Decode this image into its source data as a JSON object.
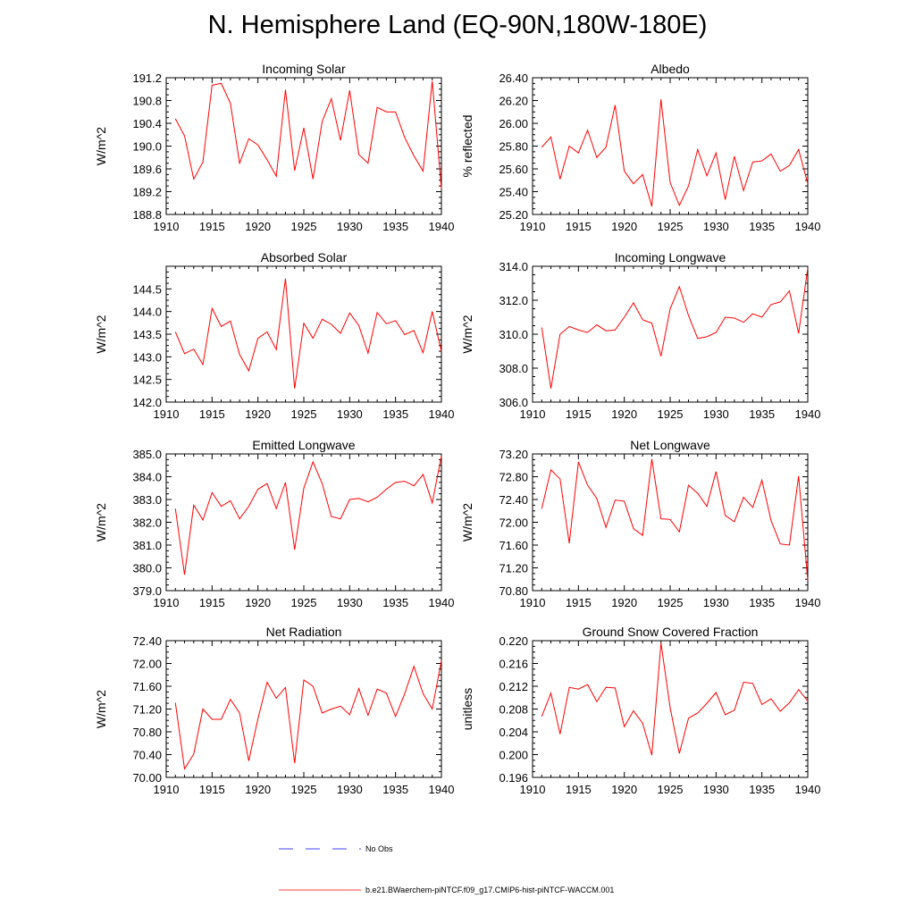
{
  "title": "N. Hemisphere Land (EQ-90N,180W-180E)",
  "colors": {
    "model": "#ff0000",
    "obs": "#0000ff",
    "axis": "#000000"
  },
  "legend": [
    {
      "label": "No Obs",
      "style": "dashed",
      "color": "#0000ff"
    },
    {
      "label": "b.e21.BWaerchem-piNTCF.f09_g17.CMIP6-hist-piNTCF-WACCM.001",
      "style": "solid",
      "color": "#ff0000"
    }
  ],
  "chart_data": [
    {
      "type": "line",
      "title": "Incoming Solar",
      "ylabel": "W/m^2",
      "xlim": [
        1910,
        1940
      ],
      "ylim": [
        188.8,
        191.2
      ],
      "xticks": [
        "1910",
        "1915",
        "1920",
        "1925",
        "1930",
        "1935",
        "1940"
      ],
      "yticks": [
        "188.8",
        "189.2",
        "189.6",
        "190.0",
        "190.4",
        "190.8",
        "191.2"
      ],
      "x": [
        1911,
        1912,
        1913,
        1914,
        1915,
        1916,
        1917,
        1918,
        1919,
        1920,
        1921,
        1922,
        1923,
        1924,
        1925,
        1926,
        1927,
        1928,
        1929,
        1930,
        1931,
        1932,
        1933,
        1934,
        1935,
        1936,
        1937,
        1938,
        1939,
        1940
      ],
      "series": [
        {
          "values": [
            190.48,
            190.18,
            189.42,
            189.72,
            191.07,
            191.1,
            190.75,
            189.7,
            190.13,
            190.02,
            189.76,
            189.47,
            190.99,
            189.57,
            190.32,
            189.42,
            190.43,
            190.83,
            190.1,
            190.98,
            189.85,
            189.7,
            190.68,
            190.6,
            190.6,
            190.15,
            189.83,
            189.56,
            191.14,
            189.25
          ]
        }
      ]
    },
    {
      "type": "line",
      "title": "Albedo",
      "ylabel": "% reflected",
      "xlim": [
        1910,
        1940
      ],
      "ylim": [
        25.2,
        26.4
      ],
      "xticks": [
        "1910",
        "1915",
        "1920",
        "1925",
        "1930",
        "1935",
        "1940"
      ],
      "yticks": [
        "25.20",
        "25.40",
        "25.60",
        "25.80",
        "26.00",
        "26.20",
        "26.40"
      ],
      "x": [
        1911,
        1912,
        1913,
        1914,
        1915,
        1916,
        1917,
        1918,
        1919,
        1920,
        1921,
        1922,
        1923,
        1924,
        1925,
        1926,
        1927,
        1928,
        1929,
        1930,
        1931,
        1932,
        1933,
        1934,
        1935,
        1936,
        1937,
        1938,
        1939,
        1940
      ],
      "series": [
        {
          "values": [
            25.79,
            25.88,
            25.51,
            25.8,
            25.74,
            25.94,
            25.7,
            25.79,
            26.16,
            25.58,
            25.47,
            25.55,
            25.27,
            26.21,
            25.48,
            25.28,
            25.45,
            25.77,
            25.54,
            25.74,
            25.33,
            25.71,
            25.41,
            25.66,
            25.67,
            25.73,
            25.58,
            25.63,
            25.77,
            25.47
          ]
        }
      ]
    },
    {
      "type": "line",
      "title": "Absorbed Solar",
      "ylabel": "W/m^2",
      "xlim": [
        1910,
        1940
      ],
      "ylim": [
        142.0,
        145.0
      ],
      "xticks": [
        "1910",
        "1915",
        "1920",
        "1925",
        "1930",
        "1935",
        "1940"
      ],
      "yticks": [
        "142.0",
        "142.5",
        "143.0",
        "143.5",
        "144.0",
        "144.5"
      ],
      "x": [
        1911,
        1912,
        1913,
        1914,
        1915,
        1916,
        1917,
        1918,
        1919,
        1920,
        1921,
        1922,
        1923,
        1924,
        1925,
        1926,
        1927,
        1928,
        1929,
        1930,
        1931,
        1932,
        1933,
        1934,
        1935,
        1936,
        1937,
        1938,
        1939,
        1940
      ],
      "series": [
        {
          "values": [
            143.55,
            143.07,
            143.17,
            142.83,
            144.07,
            143.67,
            143.79,
            143.05,
            142.69,
            143.41,
            143.55,
            143.16,
            144.73,
            142.3,
            143.74,
            143.41,
            143.83,
            143.72,
            143.52,
            143.97,
            143.69,
            143.08,
            143.98,
            143.73,
            143.8,
            143.49,
            143.58,
            143.09,
            144.0,
            143.12
          ]
        }
      ]
    },
    {
      "type": "line",
      "title": "Incoming Longwave",
      "ylabel": "W/m^2",
      "xlim": [
        1910,
        1940
      ],
      "ylim": [
        306.0,
        314.0
      ],
      "xticks": [
        "1910",
        "1915",
        "1920",
        "1925",
        "1930",
        "1935",
        "1940"
      ],
      "yticks": [
        "306.0",
        "308.0",
        "310.0",
        "312.0",
        "314.0"
      ],
      "x": [
        1911,
        1912,
        1913,
        1914,
        1915,
        1916,
        1917,
        1918,
        1919,
        1920,
        1921,
        1922,
        1923,
        1924,
        1925,
        1926,
        1927,
        1928,
        1929,
        1930,
        1931,
        1932,
        1933,
        1934,
        1935,
        1936,
        1937,
        1938,
        1939,
        1940
      ],
      "series": [
        {
          "values": [
            310.4,
            306.8,
            310.0,
            310.45,
            310.25,
            310.1,
            310.55,
            310.2,
            310.25,
            311.0,
            311.85,
            310.85,
            310.65,
            308.7,
            311.5,
            312.8,
            311.1,
            309.75,
            309.85,
            310.1,
            311.0,
            310.95,
            310.7,
            311.2,
            311.0,
            311.75,
            311.9,
            312.55,
            310.05,
            313.9
          ]
        }
      ]
    },
    {
      "type": "line",
      "title": "Emitted Longwave",
      "ylabel": "W/m^2",
      "xlim": [
        1910,
        1940
      ],
      "ylim": [
        379.0,
        385.0
      ],
      "xticks": [
        "1910",
        "1915",
        "1920",
        "1925",
        "1930",
        "1935",
        "1940"
      ],
      "yticks": [
        "379.0",
        "380.0",
        "381.0",
        "382.0",
        "383.0",
        "384.0",
        "385.0"
      ],
      "x": [
        1911,
        1912,
        1913,
        1914,
        1915,
        1916,
        1917,
        1918,
        1919,
        1920,
        1921,
        1922,
        1923,
        1924,
        1925,
        1926,
        1927,
        1928,
        1929,
        1930,
        1931,
        1932,
        1933,
        1934,
        1935,
        1936,
        1937,
        1938,
        1939,
        1940
      ],
      "series": [
        {
          "values": [
            382.6,
            379.7,
            382.75,
            382.1,
            383.3,
            382.7,
            382.95,
            382.15,
            382.7,
            383.45,
            383.7,
            382.6,
            383.75,
            380.8,
            383.5,
            384.65,
            383.7,
            382.25,
            382.15,
            383.0,
            383.05,
            382.9,
            383.1,
            383.45,
            383.75,
            383.8,
            383.6,
            384.1,
            382.85,
            384.9
          ]
        }
      ]
    },
    {
      "type": "line",
      "title": "Net Longwave",
      "ylabel": "W/m^2",
      "xlim": [
        1910,
        1940
      ],
      "ylim": [
        70.8,
        73.2
      ],
      "xticks": [
        "1910",
        "1915",
        "1920",
        "1925",
        "1930",
        "1935",
        "1940"
      ],
      "yticks": [
        "70.80",
        "71.20",
        "71.60",
        "72.00",
        "72.40",
        "72.80",
        "73.20"
      ],
      "x": [
        1911,
        1912,
        1913,
        1914,
        1915,
        1916,
        1917,
        1918,
        1919,
        1920,
        1921,
        1922,
        1923,
        1924,
        1925,
        1926,
        1927,
        1928,
        1929,
        1930,
        1931,
        1932,
        1933,
        1934,
        1935,
        1936,
        1937,
        1938,
        1939,
        1940
      ],
      "series": [
        {
          "values": [
            72.24,
            72.92,
            72.76,
            71.63,
            73.06,
            72.65,
            72.42,
            71.91,
            72.39,
            72.37,
            71.89,
            71.77,
            73.11,
            72.06,
            72.05,
            71.83,
            72.65,
            72.51,
            72.28,
            72.89,
            72.12,
            72.01,
            72.44,
            72.26,
            72.74,
            72.03,
            71.62,
            71.6,
            72.81,
            70.98
          ]
        }
      ]
    },
    {
      "type": "line",
      "title": "Net Radiation",
      "ylabel": "W/m^2",
      "xlim": [
        1910,
        1940
      ],
      "ylim": [
        70.0,
        72.4
      ],
      "xticks": [
        "1910",
        "1915",
        "1920",
        "1925",
        "1930",
        "1935",
        "1940"
      ],
      "yticks": [
        "70.00",
        "70.40",
        "70.80",
        "71.20",
        "71.60",
        "72.00",
        "72.40"
      ],
      "x": [
        1911,
        1912,
        1913,
        1914,
        1915,
        1916,
        1917,
        1918,
        1919,
        1920,
        1921,
        1922,
        1923,
        1924,
        1925,
        1926,
        1927,
        1928,
        1929,
        1930,
        1931,
        1932,
        1933,
        1934,
        1935,
        1936,
        1937,
        1938,
        1939,
        1940
      ],
      "series": [
        {
          "values": [
            71.31,
            70.15,
            70.41,
            71.2,
            71.02,
            71.02,
            71.37,
            71.13,
            70.29,
            71.03,
            71.67,
            71.39,
            71.58,
            70.25,
            71.71,
            71.6,
            71.13,
            71.2,
            71.25,
            71.1,
            71.56,
            71.09,
            71.55,
            71.48,
            71.07,
            71.47,
            71.95,
            71.47,
            71.2,
            72.05
          ]
        }
      ]
    },
    {
      "type": "line",
      "title": "Ground Snow Covered Fraction",
      "ylabel": "unitless",
      "xlim": [
        1910,
        1940
      ],
      "ylim": [
        0.196,
        0.22
      ],
      "xticks": [
        "1910",
        "1915",
        "1920",
        "1925",
        "1930",
        "1935",
        "1940"
      ],
      "yticks": [
        "0.196",
        "0.200",
        "0.204",
        "0.208",
        "0.212",
        "0.216",
        "0.220"
      ],
      "x": [
        1911,
        1912,
        1913,
        1914,
        1915,
        1916,
        1917,
        1918,
        1919,
        1920,
        1921,
        1922,
        1923,
        1924,
        1925,
        1926,
        1927,
        1928,
        1929,
        1930,
        1931,
        1932,
        1933,
        1934,
        1935,
        1936,
        1937,
        1938,
        1939,
        1940
      ],
      "series": [
        {
          "values": [
            0.2067,
            0.2108,
            0.2036,
            0.2118,
            0.2115,
            0.2123,
            0.2093,
            0.2118,
            0.2117,
            0.2049,
            0.2077,
            0.2055,
            0.1999,
            0.2196,
            0.2082,
            0.2002,
            0.2064,
            0.2073,
            0.209,
            0.2109,
            0.207,
            0.2078,
            0.2127,
            0.2125,
            0.2088,
            0.2098,
            0.2076,
            0.2091,
            0.2114,
            0.2094
          ]
        }
      ]
    }
  ]
}
